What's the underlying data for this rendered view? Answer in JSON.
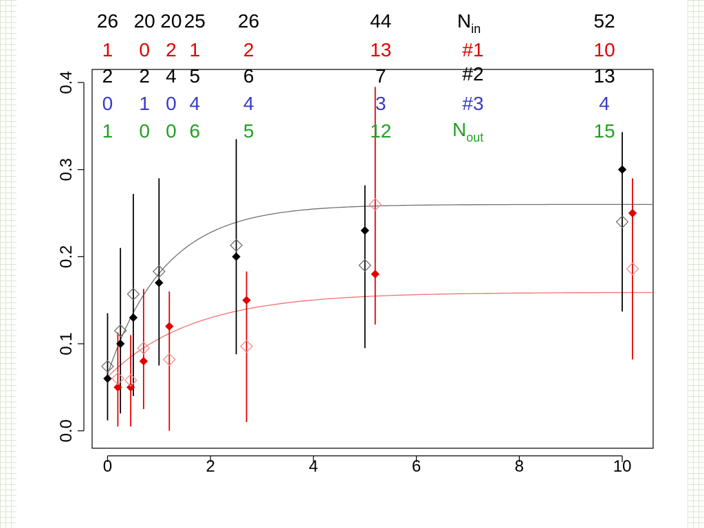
{
  "chart_data": {
    "type": "scatter",
    "title": "",
    "xlabel": "",
    "ylabel": "",
    "xlim": [
      -0.3,
      10.6
    ],
    "ylim": [
      -0.02,
      0.415
    ],
    "grid": false,
    "x_ticks": [
      "0",
      "2",
      "4",
      "6",
      "8",
      "10"
    ],
    "y_ticks": [
      "0.0",
      "0.1",
      "0.2",
      "0.3",
      "0.4"
    ],
    "colors": {
      "black": "#000000",
      "red": "#e00000",
      "light_red": "#f08a8a",
      "grey": "#707070",
      "blue": "#3a3ac8",
      "green": "#22a022",
      "fit_black": "#707070",
      "fit_red": "#f07070"
    },
    "series": [
      {
        "marker": "filled-diamond",
        "color": "black",
        "points": [
          {
            "x": 0,
            "y": 0.06,
            "lo": 0.012,
            "hi": 0.135
          },
          {
            "x": 0.25,
            "y": 0.1,
            "lo": 0.02,
            "hi": 0.21
          },
          {
            "x": 0.5,
            "y": 0.13,
            "lo": 0.04,
            "hi": 0.272
          },
          {
            "x": 1.0,
            "y": 0.17,
            "lo": 0.075,
            "hi": 0.29
          },
          {
            "x": 2.5,
            "y": 0.2,
            "lo": 0.088,
            "hi": 0.335
          },
          {
            "x": 5.0,
            "y": 0.23,
            "lo": 0.095,
            "hi": 0.282
          },
          {
            "x": 10.0,
            "y": 0.3,
            "lo": 0.137,
            "hi": 0.343
          }
        ]
      },
      {
        "marker": "filled-diamond",
        "color": "red",
        "points": [
          {
            "x": 0.2,
            "y": 0.05,
            "lo": 0.005,
            "hi": 0.113
          },
          {
            "x": 0.45,
            "y": 0.05,
            "lo": 0.005,
            "hi": 0.11
          },
          {
            "x": 0.7,
            "y": 0.08,
            "lo": 0.025,
            "hi": 0.163
          },
          {
            "x": 1.2,
            "y": 0.12,
            "lo": 0.0,
            "hi": 0.16
          },
          {
            "x": 2.7,
            "y": 0.15,
            "lo": 0.01,
            "hi": 0.183
          },
          {
            "x": 5.2,
            "y": 0.18,
            "lo": 0.122,
            "hi": 0.395
          },
          {
            "x": 10.2,
            "y": 0.25,
            "lo": 0.082,
            "hi": 0.29
          }
        ]
      },
      {
        "marker": "open-diamond",
        "color": "grey",
        "points": [
          {
            "x": 0,
            "y": 0.074
          },
          {
            "x": 0.25,
            "y": 0.115
          },
          {
            "x": 0.5,
            "y": 0.157
          },
          {
            "x": 1.0,
            "y": 0.183
          },
          {
            "x": 2.5,
            "y": 0.213
          },
          {
            "x": 5.0,
            "y": 0.19
          },
          {
            "x": 10.0,
            "y": 0.24
          }
        ]
      },
      {
        "marker": "open-diamond",
        "color": "light_red",
        "points": [
          {
            "x": 0.2,
            "y": 0.06
          },
          {
            "x": 0.45,
            "y": 0.058
          },
          {
            "x": 0.7,
            "y": 0.095
          },
          {
            "x": 1.2,
            "y": 0.082
          },
          {
            "x": 2.7,
            "y": 0.097
          },
          {
            "x": 5.2,
            "y": 0.26
          },
          {
            "x": 10.2,
            "y": 0.186
          }
        ]
      }
    ],
    "fits": [
      {
        "color": "fit_black",
        "y0": 0.065,
        "ymax": 0.26,
        "k": 0.9
      },
      {
        "color": "fit_red",
        "y0": 0.062,
        "ymax": 0.159,
        "k": 0.6
      }
    ],
    "annotations": {
      "columns": [
        {
          "x": 0.0,
          "dx": 0,
          "rows": [
            "26",
            "1",
            "2",
            "0",
            "1"
          ]
        },
        {
          "x": 0.25,
          "dx": 35,
          "rows": [
            "20",
            "0",
            "2",
            "1",
            "0"
          ]
        },
        {
          "x": 0.5,
          "dx": 55,
          "rows": [
            "20",
            "2",
            "4",
            "0",
            "0"
          ]
        },
        {
          "x": 1.0,
          "dx": 52,
          "rows": [
            "25",
            "1",
            "5",
            "4",
            "6"
          ]
        },
        {
          "x": 2.5,
          "dx": 18,
          "rows": [
            "26",
            "2",
            "6",
            "4",
            "5"
          ]
        },
        {
          "x": 5.0,
          "dx": 23,
          "rows": [
            "44",
            "13",
            "7",
            "3",
            "12"
          ]
        },
        {
          "x": 10.0,
          "dx": -26,
          "rows": [
            "52",
            "10",
            "13",
            "4",
            "15"
          ]
        }
      ],
      "legend": {
        "n_in": "N",
        "n_in_sub": "in",
        "row1": "#1",
        "row2": "#2",
        "row3": "#3",
        "n_out": "N",
        "n_out_sub": "out"
      }
    }
  }
}
